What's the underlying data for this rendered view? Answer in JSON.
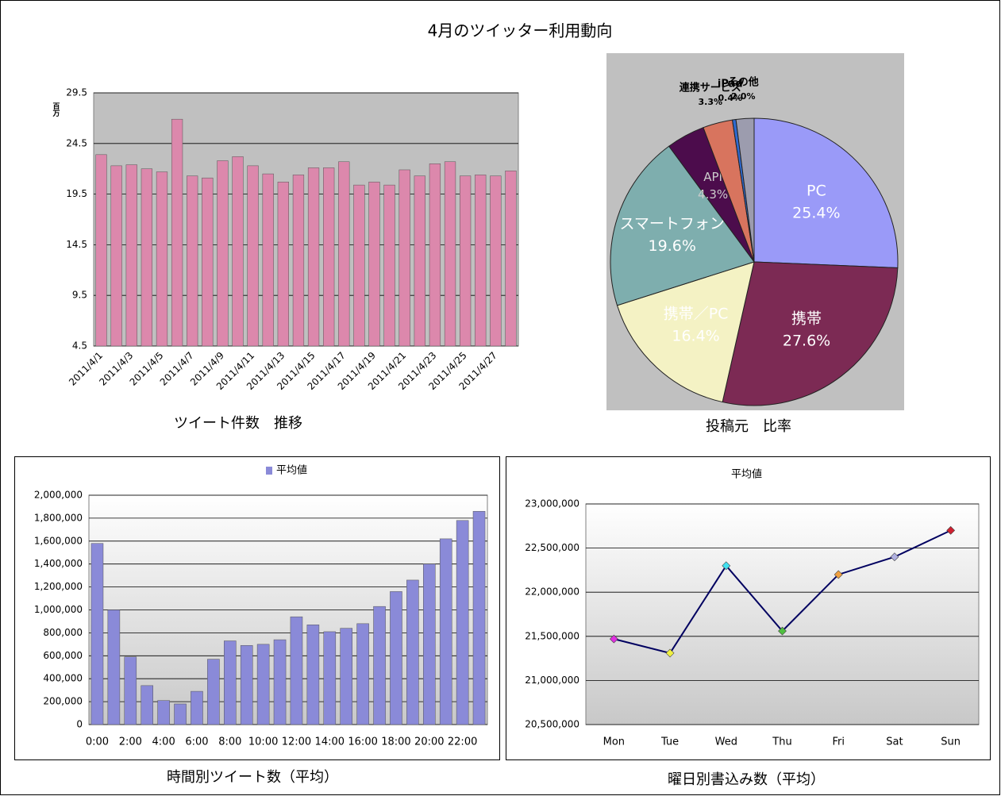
{
  "title": "4月のツイッター利用動向",
  "chart_data": [
    {
      "type": "bar",
      "caption": "ツイート件数　推移",
      "y_unit_label": "百万",
      "categories": [
        "2011/4/1",
        null,
        "2011/4/3",
        null,
        "2011/4/5",
        null,
        "2011/4/7",
        null,
        "2011/4/9",
        null,
        "2011/4/11",
        null,
        "2011/4/13",
        null,
        "2011/4/15",
        null,
        "2011/4/17",
        null,
        "2011/4/19",
        null,
        "2011/4/21",
        null,
        "2011/4/23",
        null,
        "2011/4/25",
        null,
        "2011/4/27",
        null
      ],
      "values": [
        23.4,
        22.3,
        22.4,
        22.0,
        21.7,
        26.9,
        21.3,
        21.1,
        22.8,
        23.2,
        22.3,
        21.5,
        20.7,
        21.4,
        22.1,
        22.1,
        22.7,
        20.4,
        20.7,
        20.4,
        21.9,
        21.3,
        22.5,
        22.7,
        21.3,
        21.4,
        21.3,
        21.8
      ],
      "color": "#dc88ac",
      "ylim": [
        4.5,
        29.5
      ],
      "yticks": [
        4.5,
        9.5,
        14.5,
        19.5,
        24.5,
        29.5
      ],
      "grid": true
    },
    {
      "type": "pie",
      "caption": "投稿元　比率",
      "categories": [
        "PC",
        "携帯",
        "携帯／PC",
        "スマートフォン",
        "API",
        "連携サービス",
        "iPad",
        "その他"
      ],
      "values": [
        25.4,
        27.6,
        16.4,
        19.6,
        4.3,
        3.3,
        0.4,
        2.0
      ],
      "value_labels": [
        "25.4%",
        "27.6%",
        "16.4%",
        "19.6%",
        "4.3%",
        "3.3%",
        "0.4%",
        "2.0%"
      ],
      "colors": [
        "#9a9af8",
        "#7c2a54",
        "#f4f2c4",
        "#7eaeae",
        "#4c0c4c",
        "#d8745e",
        "#2e6ad0",
        "#9c9cae"
      ]
    },
    {
      "type": "bar",
      "caption": "時間別ツイート数（平均）",
      "legend": "top",
      "categories": [
        "0:00",
        null,
        "2:00",
        null,
        "4:00",
        null,
        "6:00",
        null,
        "8:00",
        null,
        "10:00",
        null,
        "12:00",
        null,
        "14:00",
        null,
        "16:00",
        null,
        "18:00",
        null,
        "20:00",
        null,
        "22:00",
        null
      ],
      "series": [
        {
          "name": "平均値",
          "color": "#8a8ad8",
          "values": [
            1580000,
            1000000,
            590000,
            340000,
            210000,
            180000,
            290000,
            570000,
            730000,
            690000,
            700000,
            740000,
            940000,
            870000,
            810000,
            840000,
            880000,
            1030000,
            1160000,
            1260000,
            1400000,
            1620000,
            1780000,
            1860000
          ]
        }
      ],
      "ylim": [
        0,
        2000000
      ],
      "yticks": [
        0,
        {
          "value": 200000,
          "label": "200,000"
        },
        {
          "value": 400000,
          "label": "400,000"
        },
        {
          "value": 600000,
          "label": "600,000"
        },
        {
          "value": 800000,
          "label": "800,000"
        },
        {
          "value": 1000000,
          "label": "1,000,000"
        },
        {
          "value": 1200000,
          "label": "1,200,000"
        },
        {
          "value": 1400000,
          "label": "1,400,000"
        },
        {
          "value": 1600000,
          "label": "1,600,000"
        },
        {
          "value": 1800000,
          "label": "1,800,000"
        },
        {
          "value": 2000000,
          "label": "2,000,000"
        }
      ],
      "grid": true
    },
    {
      "type": "line",
      "caption": "曜日別書込み数（平均）",
      "legend": "top",
      "categories": [
        "Mon",
        "Tue",
        "Wed",
        "Thu",
        "Fri",
        "Sat",
        "Sun"
      ],
      "series": [
        {
          "name": "平均値",
          "color": "#000060",
          "values": [
            21470000,
            21310000,
            22300000,
            21560000,
            22200000,
            22400000,
            22700000
          ],
          "marker_colors": [
            "#e030e0",
            "#f0f040",
            "#40e0f0",
            "#50c040",
            "#f0a040",
            "#b0b0e0",
            "#d02030"
          ]
        }
      ],
      "ylim": [
        20500000,
        23000000
      ],
      "yticks": [
        {
          "value": 20500000,
          "label": "20,500,000"
        },
        {
          "value": 21000000,
          "label": "21,000,000"
        },
        {
          "value": 21500000,
          "label": "21,500,000"
        },
        {
          "value": 22000000,
          "label": "22,000,000"
        },
        {
          "value": 22500000,
          "label": "22,500,000"
        },
        {
          "value": 23000000,
          "label": "23,000,000"
        }
      ],
      "grid": true
    }
  ]
}
